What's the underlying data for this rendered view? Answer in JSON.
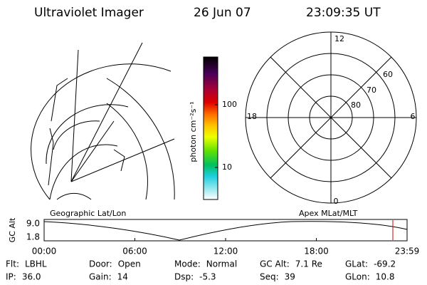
{
  "header": {
    "title": "Ultraviolet Imager",
    "date": "26 Jun 07",
    "time": "23:09:35 UT"
  },
  "polar": {
    "mlt_labels": [
      "12",
      "18",
      "6",
      "0"
    ],
    "lat_labels": [
      "60",
      "70",
      "80"
    ]
  },
  "colorbar": {
    "label": "photon cm⁻²s⁻¹",
    "ticks": [
      "100",
      "10"
    ]
  },
  "orbit": {
    "left_label": "Geographic Lat/Lon",
    "right_label": "Apex MLat/MLT",
    "y_label": "GC Alt",
    "yticks": [
      "9.0",
      "1.8"
    ],
    "xticks": [
      "00:00",
      "06:00",
      "12:00",
      "18:00",
      "23:59"
    ]
  },
  "footer": {
    "rows": [
      [
        [
          "Flt:",
          "LBHL"
        ],
        [
          "Door:",
          "Open"
        ],
        [
          "Mode:",
          "Normal"
        ],
        [
          "GC Alt:",
          "7.1 Re"
        ],
        [
          "GLat:",
          "-69.2"
        ]
      ],
      [
        [
          "IP:",
          "36.0"
        ],
        [
          "Gain:",
          "14"
        ],
        [
          "Dsp:",
          "-5.3"
        ],
        [
          "Seq:",
          "39"
        ],
        [
          "GLon:",
          "10.8"
        ]
      ]
    ]
  }
}
